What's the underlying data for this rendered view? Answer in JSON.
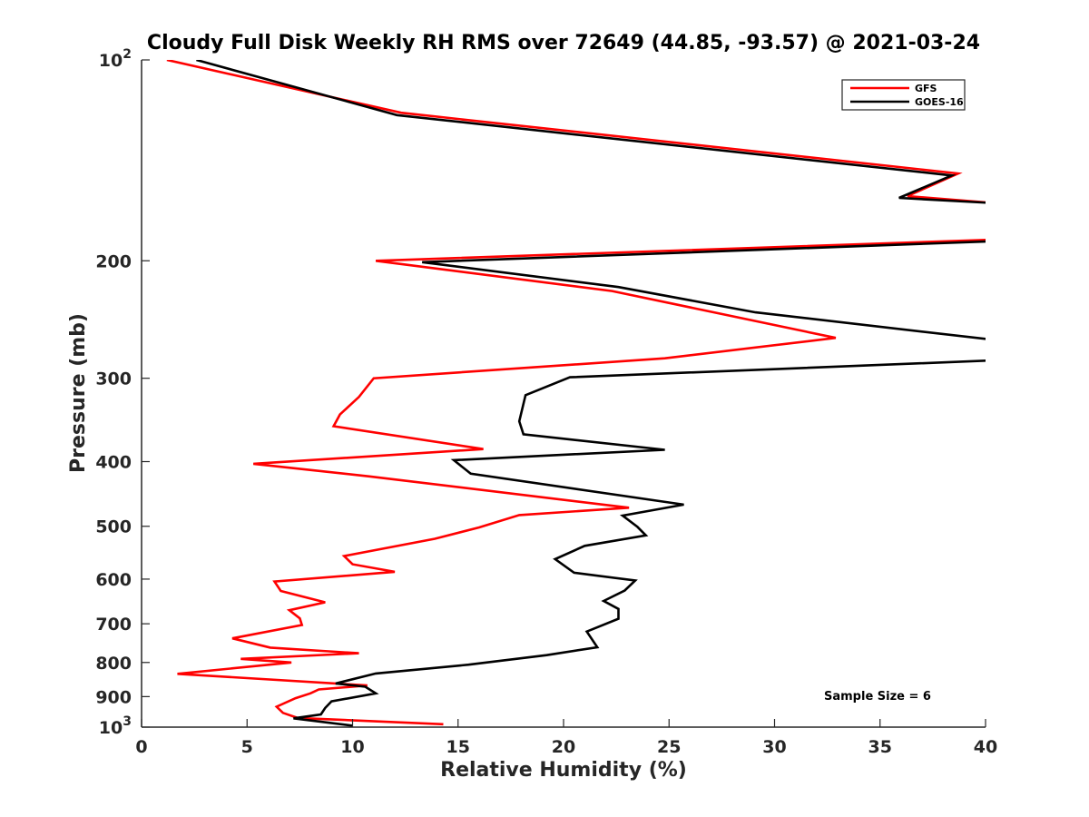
{
  "chart_data": {
    "type": "line",
    "title": "Cloudy Full Disk Weekly RH RMS over 72649 (44.85, -93.57) @ 2021-03-24",
    "xlabel": "Relative Humidity (%)",
    "ylabel": "Pressure (mb)",
    "xlim": [
      0,
      40
    ],
    "ylim": [
      100,
      1000
    ],
    "y_scale": "log",
    "y_reversed": true,
    "x_ticks": [
      "0",
      "5",
      "10",
      "15",
      "20",
      "25",
      "30",
      "35",
      "40"
    ],
    "y_ticks": [
      {
        "value": 100,
        "base": "10",
        "exp": "2"
      },
      {
        "value": 200,
        "label": "200"
      },
      {
        "value": 300,
        "label": "300"
      },
      {
        "value": 400,
        "label": "400"
      },
      {
        "value": 500,
        "label": "500"
      },
      {
        "value": 600,
        "label": "600"
      },
      {
        "value": 700,
        "label": "700"
      },
      {
        "value": 800,
        "label": "800"
      },
      {
        "value": 900,
        "label": "900"
      },
      {
        "value": 1000,
        "base": "10",
        "exp": "3"
      }
    ],
    "legend_position": "top-right",
    "annotation": "Sample Size = 6",
    "series": [
      {
        "name": "GFS",
        "color": "#ff0000",
        "points": [
          [
            1.2,
            100
          ],
          [
            12.3,
            120
          ],
          [
            38.7,
            148
          ],
          [
            36.3,
            160
          ],
          [
            40.5,
            164
          ],
          [
            40.3,
            186
          ],
          [
            11.1,
            200
          ],
          [
            22.3,
            222
          ],
          [
            32.9,
            261
          ],
          [
            24.8,
            280
          ],
          [
            11.0,
            300
          ],
          [
            10.3,
            320
          ],
          [
            9.4,
            340
          ],
          [
            9.1,
            354
          ],
          [
            16.2,
            383
          ],
          [
            5.3,
            403
          ],
          [
            10.8,
            421
          ],
          [
            23.1,
            469
          ],
          [
            17.9,
            481
          ],
          [
            16.0,
            502
          ],
          [
            13.9,
            522
          ],
          [
            9.6,
            554
          ],
          [
            10.0,
            570
          ],
          [
            12.0,
            585
          ],
          [
            6.3,
            605
          ],
          [
            6.6,
            625
          ],
          [
            8.7,
            650
          ],
          [
            7.0,
            668
          ],
          [
            7.5,
            687
          ],
          [
            7.6,
            703
          ],
          [
            4.3,
            736
          ],
          [
            6.1,
            760
          ],
          [
            10.3,
            775
          ],
          [
            4.7,
            790
          ],
          [
            7.1,
            800
          ],
          [
            1.7,
            832
          ],
          [
            10.7,
            866
          ],
          [
            8.4,
            878
          ],
          [
            8.0,
            890
          ],
          [
            7.3,
            905
          ],
          [
            6.4,
            932
          ],
          [
            6.7,
            952
          ],
          [
            7.4,
            969
          ],
          [
            14.3,
            990
          ]
        ]
      },
      {
        "name": "GOES-16",
        "color": "#000000",
        "points": [
          [
            2.6,
            100
          ],
          [
            12.1,
            121
          ],
          [
            38.4,
            149
          ],
          [
            35.9,
            161
          ],
          [
            40.5,
            164
          ],
          [
            40.3,
            187
          ],
          [
            13.3,
            201
          ],
          [
            22.6,
            219
          ],
          [
            29.1,
            239
          ],
          [
            40.5,
            263
          ],
          [
            40.5,
            282
          ],
          [
            20.3,
            299
          ],
          [
            18.2,
            318
          ],
          [
            17.9,
            348
          ],
          [
            18.1,
            364
          ],
          [
            24.8,
            384
          ],
          [
            14.8,
            398
          ],
          [
            15.6,
            417
          ],
          [
            25.7,
            464
          ],
          [
            22.8,
            482
          ],
          [
            23.5,
            501
          ],
          [
            23.9,
            516
          ],
          [
            21.0,
            535
          ],
          [
            19.6,
            560
          ],
          [
            20.5,
            587
          ],
          [
            23.4,
            603
          ],
          [
            22.9,
            624
          ],
          [
            21.9,
            647
          ],
          [
            22.6,
            665
          ],
          [
            22.6,
            688
          ],
          [
            21.1,
            719
          ],
          [
            21.6,
            759
          ],
          [
            19.2,
            780
          ],
          [
            15.5,
            806
          ],
          [
            11.1,
            831
          ],
          [
            9.2,
            860
          ],
          [
            10.6,
            870
          ],
          [
            11.1,
            890
          ],
          [
            9.0,
            915
          ],
          [
            8.7,
            936
          ],
          [
            8.5,
            957
          ],
          [
            7.2,
            970
          ],
          [
            10.0,
            995
          ]
        ]
      }
    ]
  }
}
